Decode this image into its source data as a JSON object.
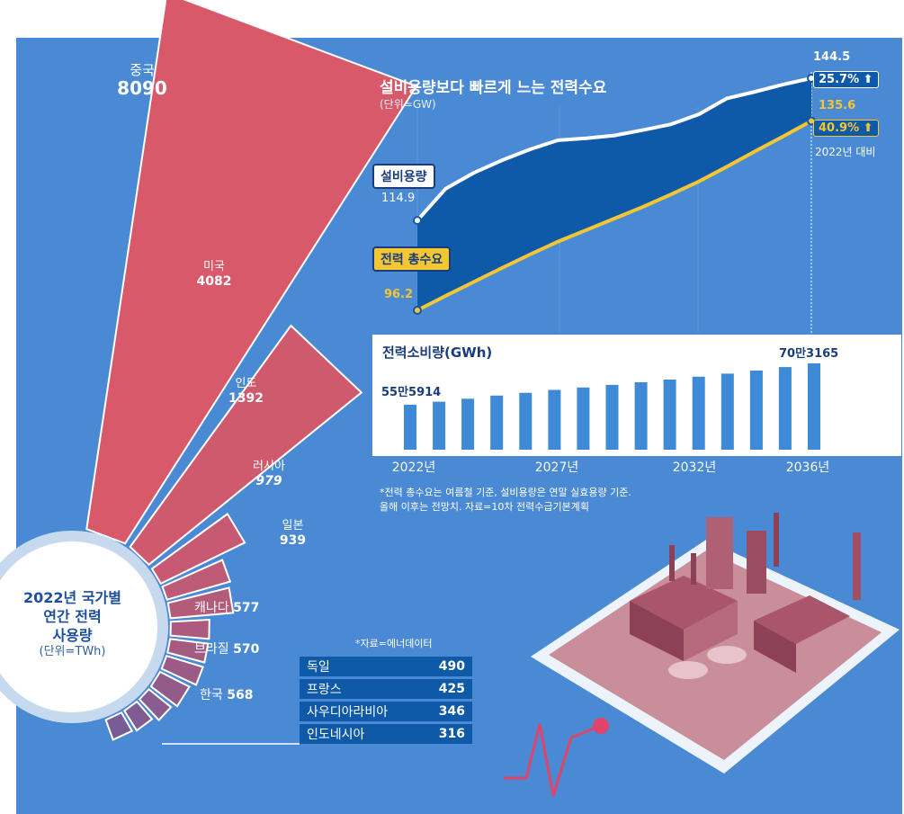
{
  "colors": {
    "background": "#4a89d4",
    "panel_white": "#ffffff",
    "capacity_fill": "#0f5aa8",
    "demand_line": "#f3c634",
    "fan_red": "#d85a6a",
    "fan_dark": "#8a5578",
    "label_navy": "#1a3d7a"
  },
  "left": {
    "title_line1": "2022년 국가별",
    "title_line2": "연간 전력",
    "title_line3": "사용량",
    "unit": "(단위=TWh)",
    "source": "*자료=에너데이터"
  },
  "note": {
    "line1": "*전력 총수요는 여름철 기준, 설비용량은 연말 실효용량 기준.",
    "line2": "올해 이후는 전망치. 자료=10차 전력수급기본계획"
  },
  "chart_data": [
    {
      "type": "bar",
      "title": "2022년 국가별 연간 전력 사용량",
      "unit": "(단위=TWh)",
      "layout": "radial fan",
      "categories": [
        "중국",
        "미국",
        "인도",
        "러시아",
        "일본",
        "캐나다",
        "브라질",
        "한국",
        "독일",
        "프랑스",
        "사우디아라비아",
        "인도네시아"
      ],
      "values": [
        8090,
        4082,
        1392,
        979,
        939,
        577,
        570,
        568,
        490,
        425,
        346,
        316
      ],
      "value_labels": [
        "8090",
        "4082",
        "1392",
        "979",
        "939",
        "577",
        "570",
        "568",
        "490",
        "425",
        "346",
        "316"
      ]
    },
    {
      "type": "area",
      "title": "설비용량보다 빠르게 느는 전력수요",
      "unit": "(단위=GW)",
      "x": [
        2022,
        2023,
        2024,
        2025,
        2026,
        2027,
        2028,
        2029,
        2030,
        2031,
        2032,
        2033,
        2034,
        2035,
        2036
      ],
      "ylim": [
        90,
        150
      ],
      "series": [
        {
          "name": "설비용량",
          "values": [
            114.9,
            121.5,
            124.8,
            127.4,
            129.7,
            131.6,
            132.0,
            132.6,
            133.7,
            134.9,
            137.0,
            140.3,
            141.7,
            143.2,
            144.5
          ]
        },
        {
          "name": "전력 총수요",
          "values": [
            96.2,
            99.2,
            102.1,
            105.0,
            107.8,
            110.5,
            112.9,
            115.3,
            117.7,
            120.3,
            123.0,
            126.1,
            129.3,
            132.4,
            135.6
          ]
        }
      ],
      "start_labels": {
        "capacity": "114.9",
        "demand": "96.2"
      },
      "end_labels": {
        "capacity": "144.5",
        "demand": "135.6"
      },
      "growth": {
        "capacity": "25.7%",
        "demand": "40.9%",
        "note": "2022년 대비"
      }
    },
    {
      "type": "bar",
      "title": "전력소비량(GWh)",
      "x": [
        2022,
        2023,
        2024,
        2025,
        2026,
        2027,
        2028,
        2029,
        2030,
        2031,
        2032,
        2033,
        2034,
        2035,
        2036
      ],
      "values": [
        555914,
        566700,
        577500,
        588500,
        598600,
        608800,
        617300,
        626600,
        636100,
        645500,
        655900,
        666600,
        677700,
        689900,
        703165
      ],
      "first_label": "55만5914",
      "last_label": "70만3165",
      "tick_labels": [
        "2022년",
        "2027년",
        "2032년",
        "2036년"
      ]
    }
  ],
  "arrow_glyph": "⬆"
}
